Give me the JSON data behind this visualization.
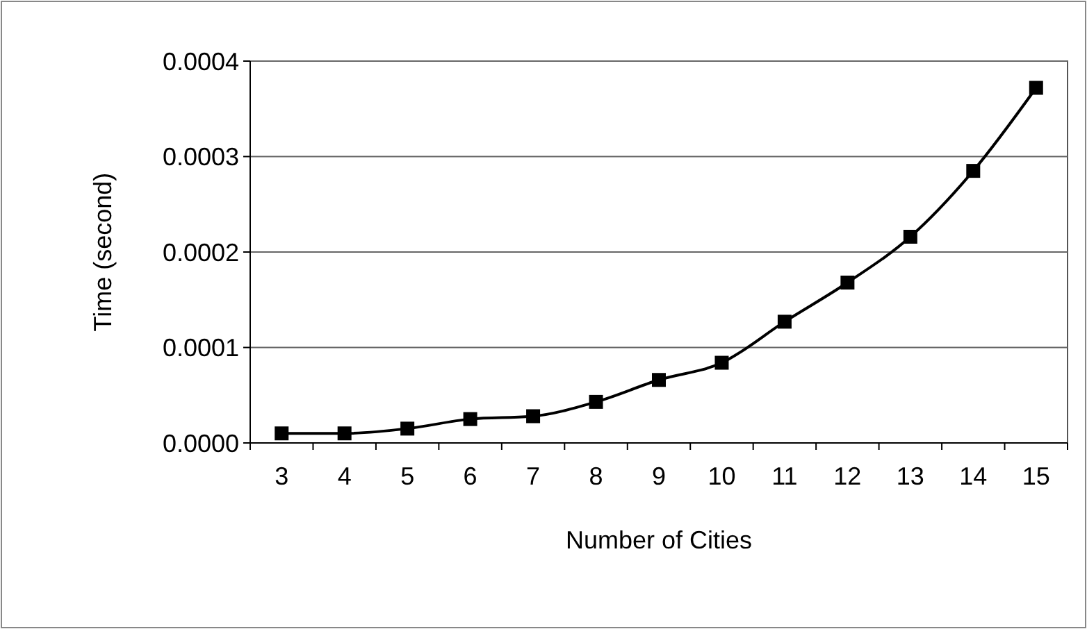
{
  "chart_data": {
    "type": "line",
    "xlabel": "Number of Cities",
    "ylabel": "Time (second)",
    "categories": [
      "3",
      "4",
      "5",
      "6",
      "7",
      "8",
      "9",
      "10",
      "11",
      "12",
      "13",
      "14",
      "15"
    ],
    "series": [
      {
        "color": "#000000",
        "values": [
          1e-05,
          1e-05,
          1.5e-05,
          2.5e-05,
          2.8e-05,
          4.3e-05,
          6.6e-05,
          8.4e-05,
          0.000127,
          0.000168,
          0.000216,
          0.000285,
          0.000372
        ]
      }
    ],
    "ylim": [
      0,
      0.0004
    ],
    "yticks": [
      {
        "value": 0,
        "label": "0.0000"
      },
      {
        "value": 0.0001,
        "label": "0.0001"
      },
      {
        "value": 0.0002,
        "label": "0.0002"
      },
      {
        "value": 0.0003,
        "label": "0.0003"
      },
      {
        "value": 0.0004,
        "label": "0.0004"
      }
    ],
    "grid": "y",
    "marker": "square",
    "line_style": "solid"
  }
}
